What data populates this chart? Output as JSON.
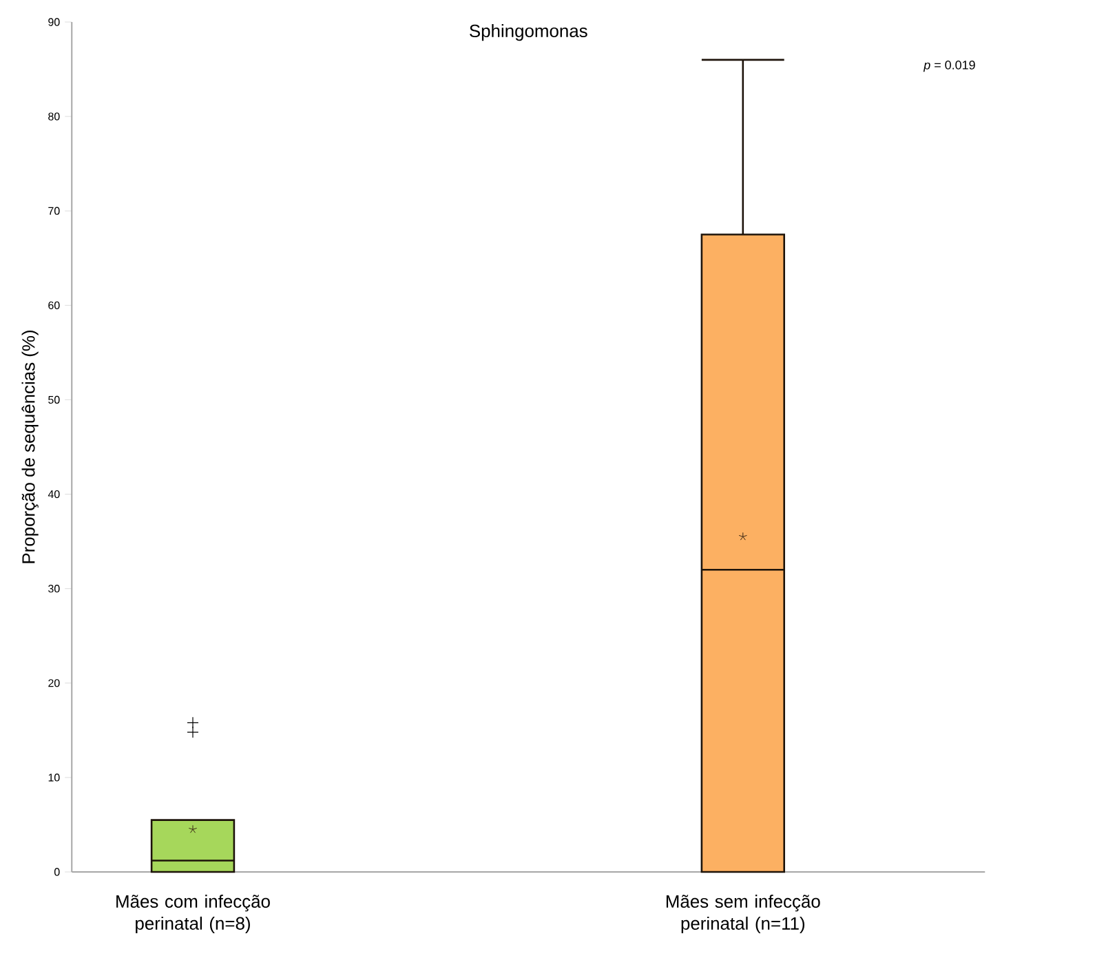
{
  "chart_data": {
    "type": "box",
    "title": "Sphingomonas",
    "ylabel": "Proporção de sequências (%)",
    "categories": [
      "Mães com infecção perinatal (n=8)",
      "Mães sem infecção perinatal (n=11)"
    ],
    "boxes": [
      {
        "q1": 0,
        "median": 1.2,
        "q3": 5.5,
        "mean": 4.5,
        "outliers": [
          14.8,
          15.8
        ]
      },
      {
        "q1": 0,
        "median": 32,
        "q3": 67.5,
        "high": 86,
        "mean": 35.5
      }
    ],
    "colors": [
      "#a6d75b",
      "#fcb062"
    ],
    "ylim": [
      0,
      90
    ],
    "yticks": [
      0,
      10,
      20,
      30,
      40,
      50,
      60,
      70,
      80,
      90
    ],
    "marker": "star",
    "annotations": [
      "*p* = 0.019"
    ]
  }
}
